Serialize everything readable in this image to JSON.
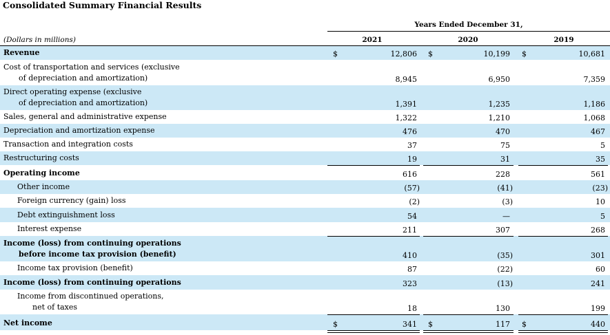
{
  "title": "Consolidated Summary Financial Results",
  "period_header": "Years Ended December 31,",
  "units_label": "(Dollars in millions)",
  "years": [
    "2021",
    "2020",
    "2019"
  ],
  "currency_symbol": "$",
  "rows": [
    {
      "id": "revenue",
      "label": [
        "Revenue"
      ],
      "bold": true,
      "indent": 0,
      "values": [
        "12,806",
        "10,199",
        "10,681"
      ],
      "dollar": true,
      "shade": true
    },
    {
      "id": "cost-of-transportation",
      "label": [
        "Cost of transportation and services (exclusive",
        "of depreciation and amortization)"
      ],
      "bold": false,
      "indent": 0,
      "values": [
        "8,945",
        "6,950",
        "7,359"
      ],
      "shade": false
    },
    {
      "id": "direct-operating-expense",
      "label": [
        "Direct operating expense (exclusive",
        "of depreciation and amortization)"
      ],
      "bold": false,
      "indent": 0,
      "values": [
        "1,391",
        "1,235",
        "1,186"
      ],
      "shade": true
    },
    {
      "id": "sga-expense",
      "label": [
        "Sales, general and administrative expense"
      ],
      "bold": false,
      "indent": 0,
      "values": [
        "1,322",
        "1,210",
        "1,068"
      ],
      "shade": false
    },
    {
      "id": "depreciation-amortization",
      "label": [
        "Depreciation and amortization expense"
      ],
      "bold": false,
      "indent": 0,
      "values": [
        "476",
        "470",
        "467"
      ],
      "shade": true
    },
    {
      "id": "transaction-integration",
      "label": [
        "Transaction and integration costs"
      ],
      "bold": false,
      "indent": 0,
      "values": [
        "37",
        "75",
        "5"
      ],
      "shade": false
    },
    {
      "id": "restructuring",
      "label": [
        "Restructuring costs"
      ],
      "bold": false,
      "indent": 0,
      "values": [
        "19",
        "31",
        "35"
      ],
      "shade": true
    },
    {
      "id": "operating-income",
      "label": [
        "Operating income"
      ],
      "bold": true,
      "indent": 0,
      "values": [
        "616",
        "228",
        "561"
      ],
      "shade": false
    },
    {
      "id": "other-income",
      "label": [
        "Other income"
      ],
      "bold": false,
      "indent": 1,
      "values": [
        "(57)",
        "(41)",
        "(23)"
      ],
      "shade": true
    },
    {
      "id": "fx-loss",
      "label": [
        "Foreign currency (gain) loss"
      ],
      "bold": false,
      "indent": 1,
      "values": [
        "(2)",
        "(3)",
        "10"
      ],
      "shade": false
    },
    {
      "id": "debt-extinguishment",
      "label": [
        "Debt extinguishment loss"
      ],
      "bold": false,
      "indent": 1,
      "values": [
        "54",
        "—",
        "5"
      ],
      "shade": true
    },
    {
      "id": "interest-expense",
      "label": [
        "Interest expense"
      ],
      "bold": false,
      "indent": 1,
      "values": [
        "211",
        "307",
        "268"
      ],
      "shade": false
    },
    {
      "id": "income-before-tax",
      "label": [
        "Income (loss) from continuing operations",
        "before income tax provision (benefit)"
      ],
      "bold": true,
      "indent": 0,
      "values": [
        "410",
        "(35)",
        "301"
      ],
      "shade": true
    },
    {
      "id": "income-tax",
      "label": [
        "Income tax provision (benefit)"
      ],
      "bold": false,
      "indent": 1,
      "values": [
        "87",
        "(22)",
        "60"
      ],
      "shade": false
    },
    {
      "id": "income-continuing",
      "label": [
        "Income (loss) from continuing operations"
      ],
      "bold": true,
      "indent": 0,
      "values": [
        "323",
        "(13)",
        "241"
      ],
      "shade": true
    },
    {
      "id": "income-discontinued",
      "label": [
        "Income from discontinued operations,",
        "net of taxes"
      ],
      "bold": false,
      "indent": 1,
      "values": [
        "18",
        "130",
        "199"
      ],
      "shade": false
    },
    {
      "id": "net-income",
      "label": [
        "Net income"
      ],
      "bold": true,
      "indent": 0,
      "values": [
        "341",
        "117",
        "440"
      ],
      "dollar": true,
      "shade": true
    }
  ]
}
